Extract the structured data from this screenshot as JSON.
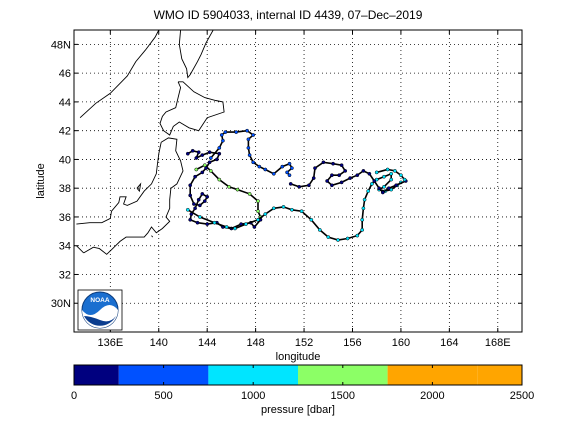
{
  "title": "WMO ID 5904033, internal ID 4439, 07–Dec–2019",
  "colors": {
    "grid": "#000000",
    "coast": "#000000",
    "axes": "#000000"
  },
  "chart_data": {
    "type": "map_trajectory",
    "title": "WMO ID 5904033, internal ID 4439, 07–Dec–2019",
    "xlabel": "longitude",
    "ylabel": "latitude",
    "xlim": [
      133,
      170
    ],
    "ylim": [
      28,
      49
    ],
    "x_ticks": [
      136,
      140,
      144,
      148,
      152,
      156,
      160,
      164,
      168
    ],
    "x_tick_labels": [
      "136E",
      "140",
      "144",
      "148",
      "152",
      "156",
      "160",
      "164",
      "168E"
    ],
    "y_ticks": [
      30,
      32,
      34,
      36,
      38,
      40,
      42,
      44,
      46,
      48
    ],
    "y_tick_labels": [
      "30N",
      "32",
      "34",
      "36",
      "38",
      "40",
      "42",
      "44",
      "46",
      "48N"
    ],
    "grid": true,
    "logo_name": "noaa-logo",
    "logo_text": "NOAA",
    "trajectory_segments": [
      {
        "pressure_class": 3,
        "points": [
          [
            143.1,
            39.3
          ],
          [
            143.8,
            39.6
          ],
          [
            144.3,
            39.2
          ],
          [
            145.0,
            38.6
          ],
          [
            145.8,
            38.1
          ],
          [
            146.5,
            37.9
          ],
          [
            147.5,
            37.6
          ],
          [
            148.2,
            37.1
          ],
          [
            148.2,
            36.4
          ],
          [
            148.4,
            36.0
          ]
        ]
      },
      {
        "pressure_class": 0,
        "points": [
          [
            142.4,
            40.4
          ],
          [
            142.8,
            40.6
          ],
          [
            143.3,
            40.5
          ],
          [
            143.1,
            40.1
          ],
          [
            143.6,
            40.3
          ],
          [
            144.2,
            40.5
          ],
          [
            145.0,
            40.4
          ],
          [
            144.8,
            40.0
          ],
          [
            144.2,
            39.8
          ],
          [
            143.9,
            39.4
          ],
          [
            143.6,
            39.1
          ],
          [
            143.0,
            38.8
          ],
          [
            142.6,
            38.2
          ],
          [
            142.6,
            37.5
          ],
          [
            142.9,
            36.9
          ],
          [
            143.4,
            36.8
          ],
          [
            143.8,
            37.1
          ],
          [
            144.0,
            37.4
          ],
          [
            143.6,
            37.6
          ],
          [
            143.3,
            37.2
          ],
          [
            143.0,
            36.6
          ],
          [
            142.7,
            36.2
          ],
          [
            142.6,
            35.8
          ],
          [
            143.2,
            35.6
          ],
          [
            144.0,
            35.5
          ],
          [
            144.8,
            35.6
          ],
          [
            145.3,
            35.3
          ],
          [
            146.0,
            35.2
          ],
          [
            146.8,
            35.5
          ],
          [
            147.6,
            35.6
          ],
          [
            147.9,
            35.3
          ],
          [
            148.4,
            35.8
          ]
        ]
      },
      {
        "pressure_class": 1,
        "points": [
          [
            144.3,
            40.1
          ],
          [
            145.0,
            40.8
          ],
          [
            145.3,
            41.3
          ],
          [
            145.2,
            41.7
          ],
          [
            145.5,
            41.9
          ],
          [
            146.4,
            41.9
          ],
          [
            147.3,
            42.0
          ],
          [
            147.8,
            41.7
          ],
          [
            147.4,
            41.4
          ],
          [
            147.4,
            40.8
          ],
          [
            147.5,
            40.3
          ],
          [
            147.8,
            39.8
          ],
          [
            148.3,
            39.5
          ],
          [
            148.8,
            39.3
          ],
          [
            149.5,
            39.0
          ],
          [
            150.2,
            39.5
          ],
          [
            150.8,
            39.7
          ],
          [
            151.0,
            39.4
          ],
          [
            150.6,
            39.1
          ],
          [
            150.8,
            38.9
          ]
        ]
      },
      {
        "pressure_class": 2,
        "points": [
          [
            142.4,
            36.5
          ],
          [
            143.4,
            36.0
          ],
          [
            144.6,
            35.6
          ],
          [
            145.6,
            35.3
          ],
          [
            146.3,
            35.2
          ],
          [
            147.2,
            35.5
          ],
          [
            148.2,
            35.8
          ],
          [
            148.8,
            36.2
          ],
          [
            149.5,
            36.6
          ],
          [
            150.3,
            36.7
          ],
          [
            151.0,
            36.5
          ],
          [
            151.8,
            36.4
          ],
          [
            152.6,
            35.8
          ],
          [
            153.3,
            35.1
          ],
          [
            154.0,
            34.6
          ],
          [
            154.8,
            34.4
          ],
          [
            155.6,
            34.5
          ],
          [
            156.4,
            34.7
          ],
          [
            156.8,
            35.1
          ],
          [
            156.8,
            35.8
          ],
          [
            156.9,
            36.6
          ],
          [
            157.0,
            37.2
          ],
          [
            157.3,
            37.8
          ],
          [
            157.6,
            38.3
          ],
          [
            158.0,
            38.6
          ],
          [
            158.6,
            38.8
          ],
          [
            159.2,
            39.0
          ],
          [
            159.2,
            38.6
          ],
          [
            158.6,
            38.1
          ],
          [
            158.2,
            37.9
          ],
          [
            158.7,
            37.8
          ],
          [
            159.2,
            37.9
          ],
          [
            159.7,
            38.2
          ],
          [
            160.0,
            38.4
          ]
        ]
      },
      {
        "pressure_class": 0,
        "points": [
          [
            150.9,
            38.3
          ],
          [
            151.6,
            38.1
          ],
          [
            152.4,
            38.2
          ],
          [
            152.8,
            38.7
          ],
          [
            152.9,
            39.4
          ],
          [
            153.6,
            39.8
          ],
          [
            154.4,
            39.7
          ],
          [
            155.1,
            39.6
          ],
          [
            155.4,
            39.2
          ],
          [
            154.9,
            38.9
          ],
          [
            154.3,
            38.9
          ],
          [
            153.9,
            38.5
          ],
          [
            154.3,
            38.2
          ],
          [
            155.1,
            38.4
          ],
          [
            155.8,
            38.7
          ],
          [
            156.4,
            38.9
          ],
          [
            156.9,
            39.2
          ],
          [
            157.4,
            39.0
          ],
          [
            157.8,
            38.5
          ],
          [
            158.2,
            38.0
          ],
          [
            158.5,
            37.7
          ],
          [
            159.0,
            38.0
          ],
          [
            159.6,
            38.2
          ],
          [
            160.4,
            38.5
          ]
        ]
      },
      {
        "pressure_class": 2,
        "points": [
          [
            158.0,
            39.1
          ],
          [
            158.9,
            39.3
          ],
          [
            159.5,
            39.2
          ],
          [
            160.0,
            38.9
          ],
          [
            160.3,
            38.6
          ]
        ]
      }
    ]
  },
  "colorbar": {
    "label": "pressure [dbar]",
    "tick_labels": [
      "0",
      "500",
      "1000",
      "1500",
      "2000",
      "2500"
    ],
    "range": [
      0,
      2500
    ],
    "bins": [
      {
        "from": 0,
        "to": 250,
        "color": "#00007f"
      },
      {
        "from": 250,
        "to": 750,
        "color": "#0051ff"
      },
      {
        "from": 750,
        "to": 1250,
        "color": "#00e5ff"
      },
      {
        "from": 1250,
        "to": 1750,
        "color": "#8cff66"
      },
      {
        "from": 1750,
        "to": 2250,
        "color": "#ffa500"
      }
    ]
  }
}
